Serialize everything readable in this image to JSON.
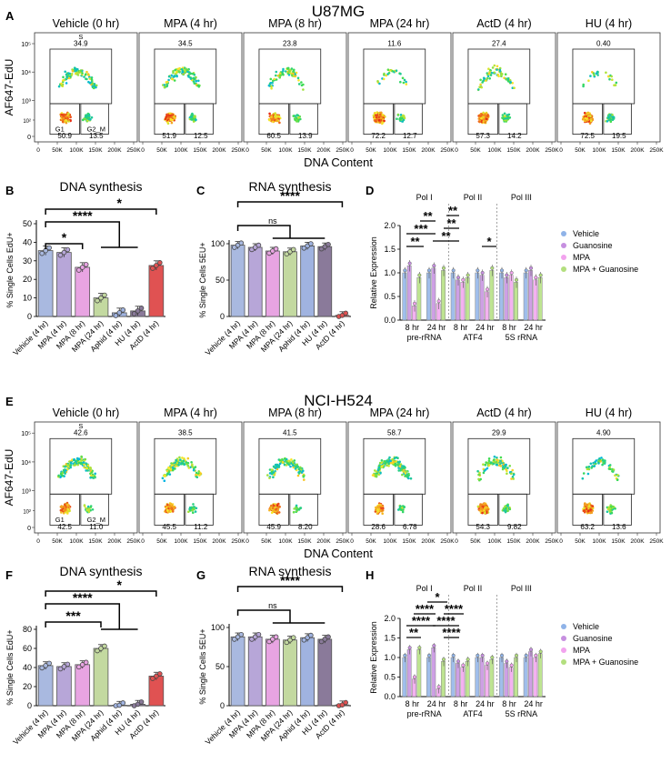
{
  "figure": {
    "top_title": "U87MG",
    "bottom_title": "NCI-H524",
    "panel_letters": [
      "A",
      "B",
      "C",
      "D",
      "E",
      "F",
      "G",
      "H"
    ],
    "flow_ylabel": "AF647-EdU",
    "flow_xlabel": "DNA Content",
    "flow_xticks": [
      "0",
      "50K",
      "100K",
      "150K",
      "200K",
      "250K"
    ],
    "flow_yticks": [
      "0",
      "10³",
      "10⁴",
      "10⁵"
    ],
    "flow_yticks_small": [
      "10²"
    ],
    "gate_names": {
      "s": "S",
      "g1": "G1",
      "g2m": "G2_M"
    },
    "colors": {
      "vehicle": "#a9b9e0",
      "mpa4": "#b7a6d8",
      "mpa8": "#e8a4e2",
      "mpa24": "#c3d9a0",
      "aphid": "#a0b3e0",
      "hu": "#8a7a9a",
      "actd": "#e05252",
      "qpcr_vehicle": "#8fb3e8",
      "qpcr_guanosine": "#c68fe0",
      "qpcr_mpa": "#f2a3ee",
      "qpcr_mpa_guanosine": "#b3df7e"
    }
  },
  "chart_data": [
    {
      "panel": "A",
      "type": "scatter",
      "cell_line": "U87MG",
      "facets": [
        {
          "title": "Vehicle (0 hr)",
          "s": "34.9",
          "g1": "50.9",
          "g2m": "13.5",
          "show_gate_names": true
        },
        {
          "title": "MPA (4 hr)",
          "s": "34.5",
          "g1": "51.9",
          "g2m": "12.5"
        },
        {
          "title": "MPA (8 hr)",
          "s": "23.8",
          "g1": "60.5",
          "g2m": "13.9"
        },
        {
          "title": "MPA (24 hr)",
          "s": "11.6",
          "g1": "72.2",
          "g2m": "12.7"
        },
        {
          "title": "ActD (4 hr)",
          "s": "27.4",
          "g1": "57.3",
          "g2m": "14.2"
        },
        {
          "title": "HU (4 hr)",
          "s": "0.40",
          "g1": "72.5",
          "g2m": "19.5"
        }
      ]
    },
    {
      "panel": "B",
      "type": "bar",
      "title": "DNA synthesis",
      "ylabel": "% Single Cells EdU+",
      "ylim": [
        0,
        50
      ],
      "yticks": [
        "0",
        "10",
        "20",
        "30",
        "40",
        "50"
      ],
      "categories": [
        "Vehicle (4 hr)",
        "MPA (4 hr)",
        "MPA (8 hr)",
        "MPA (24 hr)",
        "Aphid (4 hr)",
        "HU (4 hr)",
        "ActD (4 hr)"
      ],
      "values": [
        35.5,
        34.5,
        26.5,
        10,
        2,
        3,
        27.5
      ],
      "sig": [
        "*",
        "****",
        "*"
      ]
    },
    {
      "panel": "C",
      "type": "bar",
      "title": "RNA synthesis",
      "ylabel": "% Single Cells 5EU+",
      "ylim": [
        0,
        100
      ],
      "yticks": [
        "0",
        "50",
        "100"
      ],
      "categories": [
        "Vehicle (4 hr)",
        "MPA (4 hr)",
        "MPA (8 hr)",
        "MPA (24 hr)",
        "Aphid (4 hr)",
        "HU (4 hr)",
        "ActD (4 hr)"
      ],
      "values": [
        98,
        95,
        90,
        89,
        97,
        96,
        1.5
      ],
      "sig": [
        "****",
        "ns"
      ]
    },
    {
      "panel": "D",
      "type": "bar",
      "ylabel": "Relative Expression",
      "ylim": [
        0,
        2.0
      ],
      "yticks": [
        "0.0",
        "0.5",
        "1.0",
        "1.5",
        "2.0"
      ],
      "group_titles": [
        "Pol I",
        "Pol II",
        "Pol III"
      ],
      "xticks": [
        "8 hr",
        "24 hr",
        "8 hr",
        "24 hr",
        "8 hr",
        "24 hr"
      ],
      "genes": [
        "pre-rRNA",
        "ATF4",
        "5S rRNA"
      ],
      "legend": [
        "Vehicle",
        "Guanosine",
        "MPA",
        "MPA + Guanosine"
      ],
      "series": [
        {
          "name": "Vehicle",
          "values": [
            1.0,
            1.0,
            1.0,
            1.0,
            1.0,
            1.0
          ]
        },
        {
          "name": "Guanosine",
          "values": [
            1.15,
            1.1,
            0.85,
            0.95,
            0.9,
            1.05
          ]
        },
        {
          "name": "MPA",
          "values": [
            0.3,
            0.35,
            0.8,
            0.6,
            0.95,
            0.85
          ]
        },
        {
          "name": "MPA + Guanosine",
          "values": [
            0.9,
            1.05,
            0.9,
            1.05,
            0.8,
            0.9
          ]
        }
      ],
      "sig": [
        "**",
        "***",
        "**",
        "**",
        "**",
        "**",
        "*"
      ]
    },
    {
      "panel": "E",
      "type": "scatter",
      "cell_line": "NCI-H524",
      "facets": [
        {
          "title": "Vehicle (0 hr)",
          "s": "42.6",
          "g1": "42.5",
          "g2m": "11.0",
          "show_gate_names": true
        },
        {
          "title": "MPA (4 hr)",
          "s": "38.5",
          "g1": "45.5",
          "g2m": "11.2"
        },
        {
          "title": "MPA (8 hr)",
          "s": "41.5",
          "g1": "45.9",
          "g2m": "8.20"
        },
        {
          "title": "MPA (24 hr)",
          "s": "58.7",
          "g1": "28.6",
          "g2m": "6.78"
        },
        {
          "title": "ActD (4 hr)",
          "s": "29.9",
          "g1": "54.3",
          "g2m": "9.82"
        },
        {
          "title": "HU (4 hr)",
          "s": "4.90",
          "g1": "63.2",
          "g2m": "13.6"
        }
      ]
    },
    {
      "panel": "F",
      "type": "bar",
      "title": "DNA synthesis",
      "ylabel": "% Single Cells EdU+",
      "ylim": [
        0,
        80
      ],
      "yticks": [
        "0",
        "20",
        "40",
        "60",
        "80"
      ],
      "categories": [
        "Vehicle (4 hr)",
        "MPA (4 hr)",
        "MPA (8 hr)",
        "MPA (24 hr)",
        "Aphid (4 hr)",
        "HU (4 hr)",
        "ActD (4 hr)"
      ],
      "values": [
        42,
        41,
        43,
        60,
        0.5,
        1.5,
        31
      ],
      "sig": [
        "***",
        "****",
        "*"
      ]
    },
    {
      "panel": "G",
      "type": "bar",
      "title": "RNA synthesis",
      "ylabel": "% Single Cells 5EU+",
      "ylim": [
        0,
        100
      ],
      "yticks": [
        "0",
        "50",
        "100"
      ],
      "categories": [
        "Vehicle (4 hr)",
        "MPA (4 hr)",
        "MPA (8 hr)",
        "MPA (24 hr)",
        "Aphid (4 hr)",
        "HU (4 hr)",
        "ActD (4 hr)"
      ],
      "values": [
        88,
        88,
        85,
        84,
        87,
        85,
        1
      ],
      "sig": [
        "****",
        "ns"
      ]
    },
    {
      "panel": "H",
      "type": "bar",
      "ylabel": "Relative Expression",
      "ylim": [
        0,
        2.0
      ],
      "yticks": [
        "0.0",
        "0.5",
        "1.0",
        "1.5",
        "2.0"
      ],
      "group_titles": [
        "Pol I",
        "Pol II",
        "Pol III"
      ],
      "xticks": [
        "8 hr",
        "24 hr",
        "8 hr",
        "24 hr",
        "8 hr",
        "24 hr"
      ],
      "genes": [
        "pre-rRNA",
        "ATF4",
        "5S rRNA"
      ],
      "legend": [
        "Vehicle",
        "Guanosine",
        "MPA",
        "MPA + Guanosine"
      ],
      "series": [
        {
          "name": "Vehicle",
          "values": [
            1.0,
            1.0,
            1.0,
            1.0,
            1.0,
            1.0
          ]
        },
        {
          "name": "Guanosine",
          "values": [
            1.2,
            1.25,
            0.85,
            1.0,
            0.85,
            1.15
          ]
        },
        {
          "name": "MPA",
          "values": [
            0.45,
            0.2,
            0.75,
            0.8,
            0.75,
            1.0
          ]
        },
        {
          "name": "MPA + Guanosine",
          "values": [
            1.2,
            0.9,
            0.9,
            0.95,
            1.0,
            1.1
          ]
        }
      ],
      "sig": [
        "**",
        "****",
        "****",
        "*",
        "****",
        "****",
        "****"
      ]
    }
  ]
}
